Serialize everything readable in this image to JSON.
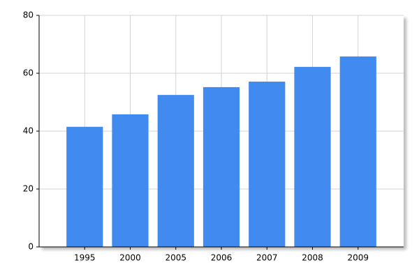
{
  "chart_data": {
    "type": "bar",
    "categories": [
      "1995",
      "2000",
      "2005",
      "2006",
      "2007",
      "2008",
      "2009"
    ],
    "values": [
      41.5,
      45.8,
      52.5,
      55.2,
      57.1,
      62.2,
      65.8
    ],
    "color": "#418bf0",
    "ylim": [
      0,
      80
    ],
    "yticks": [
      0,
      20,
      40,
      60,
      80
    ],
    "grid": true
  }
}
